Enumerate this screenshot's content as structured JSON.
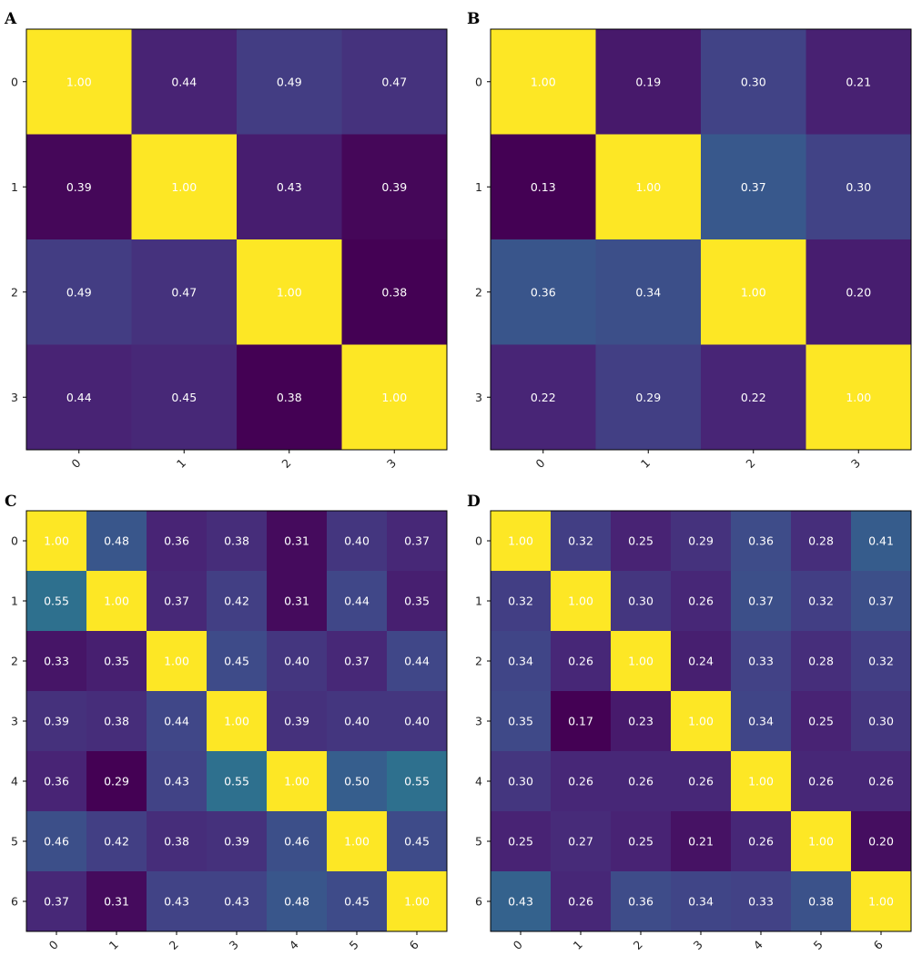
{
  "chart_data": [
    {
      "type": "heatmap",
      "panel": "A",
      "x_ticks": [
        "0",
        "1",
        "2",
        "3"
      ],
      "y_ticks": [
        "0",
        "1",
        "2",
        "3"
      ],
      "vmin": 0.38,
      "vmax": 1.0,
      "values": [
        [
          1.0,
          0.44,
          0.49,
          0.47
        ],
        [
          0.39,
          1.0,
          0.43,
          0.39
        ],
        [
          0.49,
          0.47,
          1.0,
          0.38
        ],
        [
          0.44,
          0.45,
          0.38,
          1.0
        ]
      ],
      "cell_text": [
        [
          "1.00",
          "0.44",
          "0.49",
          "0.47"
        ],
        [
          "0.39",
          "1.00",
          "0.43",
          "0.39"
        ],
        [
          "0.49",
          "0.47",
          "1.00",
          "0.38"
        ],
        [
          "0.44",
          "0.45",
          "0.38",
          "1.00"
        ]
      ],
      "colormap": "viridis"
    },
    {
      "type": "heatmap",
      "panel": "B",
      "x_ticks": [
        "0",
        "1",
        "2",
        "3"
      ],
      "y_ticks": [
        "0",
        "1",
        "2",
        "3"
      ],
      "vmin": 0.13,
      "vmax": 1.0,
      "values": [
        [
          1.0,
          0.19,
          0.3,
          0.21
        ],
        [
          0.13,
          1.0,
          0.37,
          0.3
        ],
        [
          0.36,
          0.34,
          1.0,
          0.2
        ],
        [
          0.22,
          0.29,
          0.22,
          1.0
        ]
      ],
      "cell_text": [
        [
          "1.00",
          "0.19",
          "0.30",
          "0.21"
        ],
        [
          "0.13",
          "1.00",
          "0.37",
          "0.30"
        ],
        [
          "0.36",
          "0.34",
          "1.00",
          "0.20"
        ],
        [
          "0.22",
          "0.29",
          "0.22",
          "1.00"
        ]
      ],
      "colormap": "viridis"
    },
    {
      "type": "heatmap",
      "panel": "C",
      "x_ticks": [
        "0",
        "1",
        "2",
        "3",
        "4",
        "5",
        "6"
      ],
      "y_ticks": [
        "0",
        "1",
        "2",
        "3",
        "4",
        "5",
        "6"
      ],
      "vmin": 0.29,
      "vmax": 1.0,
      "values": [
        [
          1.0,
          0.48,
          0.36,
          0.38,
          0.31,
          0.4,
          0.37
        ],
        [
          0.55,
          1.0,
          0.37,
          0.42,
          0.31,
          0.44,
          0.35
        ],
        [
          0.33,
          0.35,
          1.0,
          0.45,
          0.4,
          0.37,
          0.44
        ],
        [
          0.39,
          0.38,
          0.44,
          1.0,
          0.39,
          0.4,
          0.4
        ],
        [
          0.36,
          0.29,
          0.43,
          0.55,
          1.0,
          0.5,
          0.55
        ],
        [
          0.46,
          0.42,
          0.38,
          0.39,
          0.46,
          1.0,
          0.45
        ],
        [
          0.37,
          0.31,
          0.43,
          0.43,
          0.48,
          0.45,
          1.0
        ]
      ],
      "cell_text": [
        [
          "1.00",
          "0.48",
          "0.36",
          "0.38",
          "0.31",
          "0.40",
          "0.37"
        ],
        [
          "0.55",
          "1.00",
          "0.37",
          "0.42",
          "0.31",
          "0.44",
          "0.35"
        ],
        [
          "0.33",
          "0.35",
          "1.00",
          "0.45",
          "0.40",
          "0.37",
          "0.44"
        ],
        [
          "0.39",
          "0.38",
          "0.44",
          "1.00",
          "0.39",
          "0.40",
          "0.40"
        ],
        [
          "0.36",
          "0.29",
          "0.43",
          "0.55",
          "1.00",
          "0.50",
          "0.55"
        ],
        [
          "0.46",
          "0.42",
          "0.38",
          "0.39",
          "0.46",
          "1.00",
          "0.45"
        ],
        [
          "0.37",
          "0.31",
          "0.43",
          "0.43",
          "0.48",
          "0.45",
          "1.00"
        ]
      ],
      "colormap": "viridis"
    },
    {
      "type": "heatmap",
      "panel": "D",
      "x_ticks": [
        "0",
        "1",
        "2",
        "3",
        "4",
        "5",
        "6"
      ],
      "y_ticks": [
        "0",
        "1",
        "2",
        "3",
        "4",
        "5",
        "6"
      ],
      "vmin": 0.17,
      "vmax": 1.0,
      "values": [
        [
          1.0,
          0.32,
          0.25,
          0.29,
          0.36,
          0.28,
          0.41
        ],
        [
          0.32,
          1.0,
          0.3,
          0.26,
          0.37,
          0.32,
          0.37
        ],
        [
          0.34,
          0.26,
          1.0,
          0.24,
          0.33,
          0.28,
          0.32
        ],
        [
          0.35,
          0.17,
          0.23,
          1.0,
          0.34,
          0.25,
          0.3
        ],
        [
          0.3,
          0.26,
          0.26,
          0.26,
          1.0,
          0.26,
          0.26
        ],
        [
          0.25,
          0.27,
          0.25,
          0.21,
          0.26,
          1.0,
          0.2
        ],
        [
          0.43,
          0.26,
          0.36,
          0.34,
          0.33,
          0.38,
          1.0
        ]
      ],
      "cell_text": [
        [
          "1.00",
          "0.32",
          "0.25",
          "0.29",
          "0.36",
          "0.28",
          "0.41"
        ],
        [
          "0.32",
          "1.00",
          "0.30",
          "0.26",
          "0.37",
          "0.32",
          "0.37"
        ],
        [
          "0.34",
          "0.26",
          "1.00",
          "0.24",
          "0.33",
          "0.28",
          "0.32"
        ],
        [
          "0.35",
          "0.17",
          "0.23",
          "1.00",
          "0.34",
          "0.25",
          "0.30"
        ],
        [
          "0.30",
          "0.26",
          "0.26",
          "0.26",
          "1.00",
          "0.26",
          "0.26"
        ],
        [
          "0.25",
          "0.27",
          "0.25",
          "0.21",
          "0.26",
          "1.00",
          "0.20"
        ],
        [
          "0.43",
          "0.26",
          "0.36",
          "0.34",
          "0.33",
          "0.38",
          "1.00"
        ]
      ],
      "colormap": "viridis"
    }
  ]
}
